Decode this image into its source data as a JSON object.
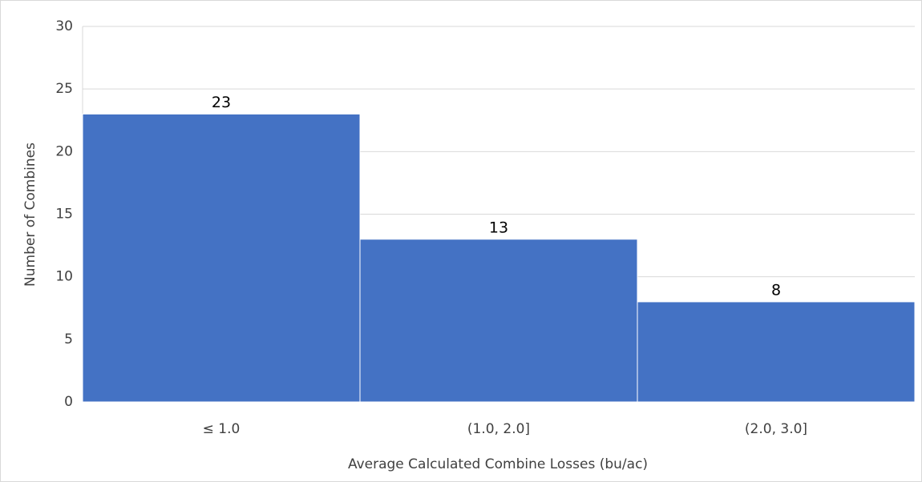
{
  "chart_data": {
    "type": "bar",
    "xlabel": "Average Calculated Combine Losses (bu/ac)",
    "ylabel": "Number of Combines",
    "categories": [
      "≤ 1.0",
      "(1.0, 2.0]",
      "(2.0, 3.0]"
    ],
    "values": [
      23,
      13,
      8
    ],
    "color": "#4472c4",
    "ylim": [
      0,
      30
    ],
    "yticks": [
      0,
      5,
      10,
      15,
      20,
      25,
      30
    ],
    "grid": true,
    "data_labels": true
  }
}
